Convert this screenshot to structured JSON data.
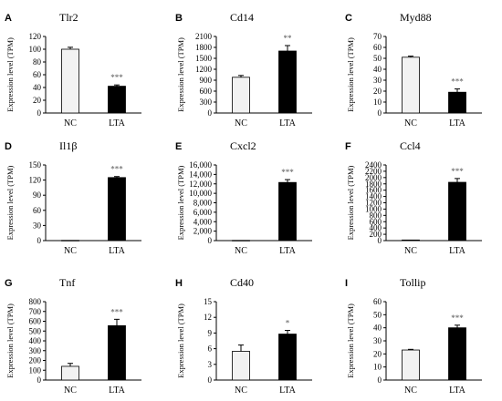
{
  "chart_data": [
    {
      "type": "bar",
      "panel": "A",
      "title": "Tlr2",
      "ylabel": "Expression level (TPM)",
      "categories": [
        "NC",
        "LTA"
      ],
      "values": [
        100,
        42
      ],
      "errors": [
        3,
        2
      ],
      "ylim": [
        0,
        120
      ],
      "yticks": [
        "0",
        "20",
        "40",
        "60",
        "80",
        "100",
        "120"
      ],
      "significance": [
        "",
        "***"
      ],
      "bar_colors": [
        "#f2f2f2",
        "#000000"
      ]
    },
    {
      "type": "bar",
      "panel": "B",
      "title": "Cd14",
      "ylabel": "Expression level (TPM)",
      "categories": [
        "NC",
        "LTA"
      ],
      "values": [
        980,
        1700
      ],
      "errors": [
        50,
        150
      ],
      "ylim": [
        0,
        2100
      ],
      "yticks": [
        "0",
        "300",
        "600",
        "900",
        "1200",
        "1500",
        "1800",
        "2100"
      ],
      "significance": [
        "",
        "**"
      ],
      "bar_colors": [
        "#f2f2f2",
        "#000000"
      ]
    },
    {
      "type": "bar",
      "panel": "C",
      "title": "Myd88",
      "ylabel": "Expression level (TPM)",
      "categories": [
        "NC",
        "LTA"
      ],
      "values": [
        51,
        19
      ],
      "errors": [
        1,
        3
      ],
      "ylim": [
        0,
        70
      ],
      "yticks": [
        "0",
        "10",
        "20",
        "30",
        "40",
        "50",
        "60",
        "70"
      ],
      "significance": [
        "",
        "***"
      ],
      "bar_colors": [
        "#f2f2f2",
        "#000000"
      ]
    },
    {
      "type": "bar",
      "panel": "D",
      "title": "Il1β",
      "ylabel": "Expression level (TPM)",
      "categories": [
        "NC",
        "LTA"
      ],
      "values": [
        0.5,
        125
      ],
      "errors": [
        0,
        2
      ],
      "ylim": [
        0,
        150
      ],
      "yticks": [
        "0",
        "30",
        "60",
        "90",
        "120",
        "150"
      ],
      "significance": [
        "",
        "***"
      ],
      "bar_colors": [
        "#f2f2f2",
        "#000000"
      ]
    },
    {
      "type": "bar",
      "panel": "E",
      "title": "Cxcl2",
      "ylabel": "Expression level (TPM)",
      "categories": [
        "NC",
        "LTA"
      ],
      "values": [
        50,
        12300
      ],
      "errors": [
        0,
        600
      ],
      "ylim": [
        0,
        16000
      ],
      "yticks": [
        "0",
        "2,000",
        "4,000",
        "6,000",
        "8,000",
        "10,000",
        "12,000",
        "14,000",
        "16,000"
      ],
      "significance": [
        "",
        "***"
      ],
      "bar_colors": [
        "#f2f2f2",
        "#000000"
      ]
    },
    {
      "type": "bar",
      "panel": "F",
      "title": "Ccl4",
      "ylabel": "Expression level (TPM)",
      "categories": [
        "NC",
        "LTA"
      ],
      "values": [
        20,
        1850
      ],
      "errors": [
        0,
        120
      ],
      "ylim": [
        0,
        2400
      ],
      "yticks": [
        "0",
        "200",
        "400",
        "600",
        "800",
        "1000",
        "1200",
        "1400",
        "1600",
        "1800",
        "2000",
        "2200",
        "2400"
      ],
      "significance": [
        "",
        "***"
      ],
      "bar_colors": [
        "#f2f2f2",
        "#000000"
      ]
    },
    {
      "type": "bar",
      "panel": "G",
      "title": "Tnf",
      "ylabel": "Expression level (TPM)",
      "categories": [
        "NC",
        "LTA"
      ],
      "values": [
        140,
        555
      ],
      "errors": [
        30,
        65
      ],
      "ylim": [
        0,
        800
      ],
      "yticks": [
        "0",
        "100",
        "200",
        "300",
        "400",
        "500",
        "600",
        "700",
        "800"
      ],
      "significance": [
        "",
        "***"
      ],
      "bar_colors": [
        "#f2f2f2",
        "#000000"
      ]
    },
    {
      "type": "bar",
      "panel": "H",
      "title": "Cd40",
      "ylabel": "Expression level (TPM)",
      "categories": [
        "NC",
        "LTA"
      ],
      "values": [
        5.5,
        8.8
      ],
      "errors": [
        1.2,
        0.7
      ],
      "ylim": [
        0,
        15
      ],
      "yticks": [
        "0",
        "3",
        "6",
        "9",
        "12",
        "15"
      ],
      "significance": [
        "",
        "*"
      ],
      "bar_colors": [
        "#f2f2f2",
        "#000000"
      ]
    },
    {
      "type": "bar",
      "panel": "I",
      "title": "Tollip",
      "ylabel": "Expression level (TPM)",
      "categories": [
        "NC",
        "LTA"
      ],
      "values": [
        23,
        40
      ],
      "errors": [
        0.5,
        2
      ],
      "ylim": [
        0,
        60
      ],
      "yticks": [
        "0",
        "10",
        "20",
        "30",
        "40",
        "50",
        "60"
      ],
      "significance": [
        "",
        "***"
      ],
      "bar_colors": [
        "#f2f2f2",
        "#000000"
      ]
    }
  ]
}
